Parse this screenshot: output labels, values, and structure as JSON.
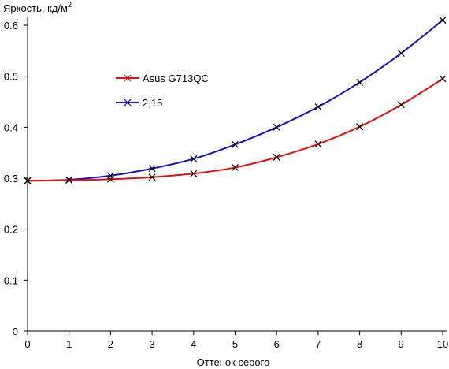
{
  "chart_data": {
    "type": "line",
    "xlabel": "Оттенок серого",
    "ylabel": "Яркость, кд/м",
    "ylabel_sup": "2",
    "xlim": [
      0,
      10
    ],
    "ylim": [
      0,
      0.6
    ],
    "x_ticks": [
      "0",
      "1",
      "2",
      "3",
      "4",
      "5",
      "6",
      "7",
      "8",
      "9",
      "10"
    ],
    "y_ticks": [
      "0",
      "0.1",
      "0.2",
      "0.3",
      "0.4",
      "0.5",
      "0.6"
    ],
    "grid": false,
    "legend_position": "upper-left-inside",
    "x": [
      0,
      1,
      2,
      3,
      4,
      5,
      6,
      7,
      8,
      9,
      10
    ],
    "series": [
      {
        "name": "Asus G713QC",
        "color": "#e01010",
        "marker": "x",
        "values": [
          0.295,
          0.296,
          0.298,
          0.302,
          0.309,
          0.321,
          0.341,
          0.367,
          0.401,
          0.444,
          0.495
        ]
      },
      {
        "name": "2,15",
        "color": "#1010c8",
        "marker": "x",
        "values": [
          0.295,
          0.297,
          0.305,
          0.319,
          0.338,
          0.366,
          0.4,
          0.44,
          0.488,
          0.545,
          0.61
        ]
      }
    ]
  }
}
